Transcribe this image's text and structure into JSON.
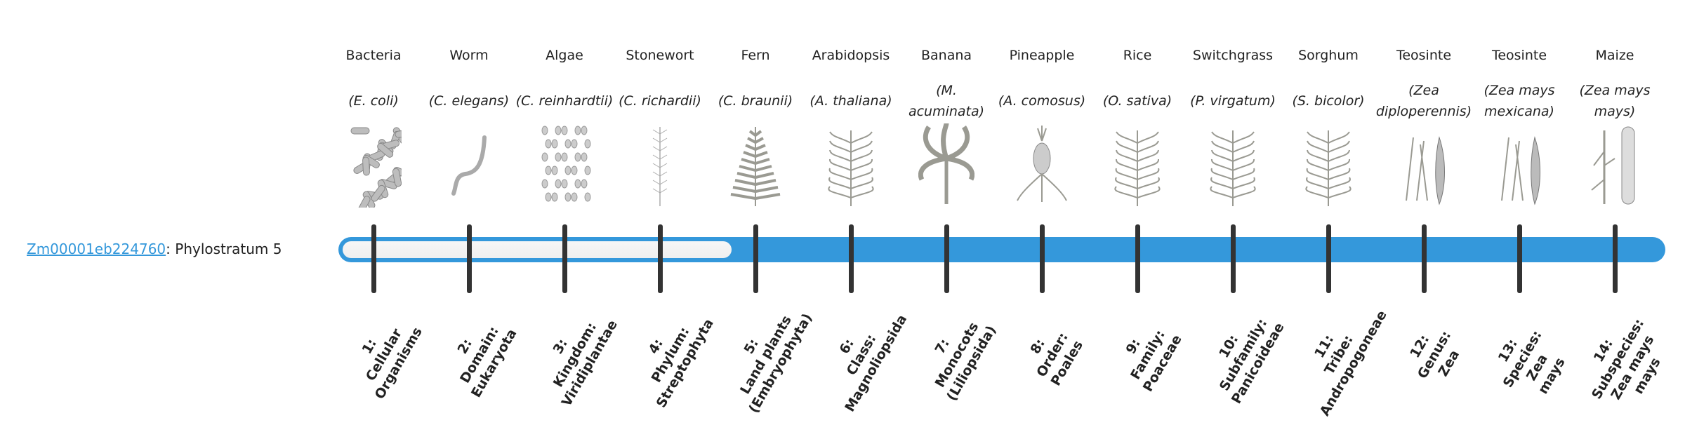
{
  "gene": {
    "id": "Zm00001eb224760",
    "separator": ":",
    "suffix": " Phylostratum 5",
    "phylostratum": 5
  },
  "colors": {
    "accent": "#3498db",
    "tick": "#333333",
    "empty": "#f2f2f2"
  },
  "organisms": [
    {
      "name": "Bacteria",
      "species": "(E. coli)",
      "icon": "bacteria-icon",
      "stratum": [
        "1:",
        "Cellular",
        "Organisms"
      ]
    },
    {
      "name": "Worm",
      "species": "(C. elegans)",
      "icon": "worm-icon",
      "stratum": [
        "2:",
        "Domain:",
        "Eukaryota"
      ]
    },
    {
      "name": "Algae",
      "species": "(C. reinhardtii)",
      "icon": "algae-icon",
      "stratum": [
        "3:",
        "Kingdom:",
        "Viridiplantae"
      ]
    },
    {
      "name": "Stonewort",
      "species": "(C. richardii)",
      "icon": "stonewort-icon",
      "stratum": [
        "4:",
        "Phylum:",
        "Streptophyta"
      ]
    },
    {
      "name": "Fern",
      "species": "(C. braunii)",
      "icon": "fern-icon",
      "stratum": [
        "5:",
        "Land plants",
        "(Embryophyta)"
      ]
    },
    {
      "name": "Arabidopsis",
      "species": "(A. thaliana)",
      "icon": "arabidopsis-icon",
      "stratum": [
        "6:",
        "Class:",
        "Magnoliopsida"
      ]
    },
    {
      "name": "Banana",
      "species": "(M. acuminata)",
      "icon": "banana-icon",
      "stratum": [
        "7:",
        "Monocots",
        "(Liliopsida)"
      ]
    },
    {
      "name": "Pineapple",
      "species": "(A. comosus)",
      "icon": "pineapple-icon",
      "stratum": [
        "8:",
        "Order:",
        "Poales"
      ]
    },
    {
      "name": "Rice",
      "species": "(O. sativa)",
      "icon": "rice-icon",
      "stratum": [
        "9:",
        "Family:",
        "Poaceae"
      ]
    },
    {
      "name": "Switchgrass",
      "species": "(P. virgatum)",
      "icon": "switchgrass-icon",
      "stratum": [
        "10:",
        "Subfamily:",
        "Panicoideae"
      ]
    },
    {
      "name": "Sorghum",
      "species": "(S. bicolor)",
      "icon": "sorghum-icon",
      "stratum": [
        "11:",
        "Tribe:",
        "Andropogoneae"
      ]
    },
    {
      "name": "Teosinte",
      "species": "(Zea diploperennis)",
      "icon": "teosinte-icon",
      "stratum": [
        "12:",
        "Genus:",
        "Zea"
      ]
    },
    {
      "name": "Teosinte",
      "species": "(Zea mays mexicana)",
      "icon": "teosinte-icon",
      "stratum": [
        "13:",
        "Species:",
        "Zea",
        "mays"
      ]
    },
    {
      "name": "Maize",
      "species": "(Zea mays mays)",
      "icon": "maize-icon",
      "stratum": [
        "14:",
        "Subspecies:",
        "Zea mays",
        "mays"
      ]
    }
  ]
}
